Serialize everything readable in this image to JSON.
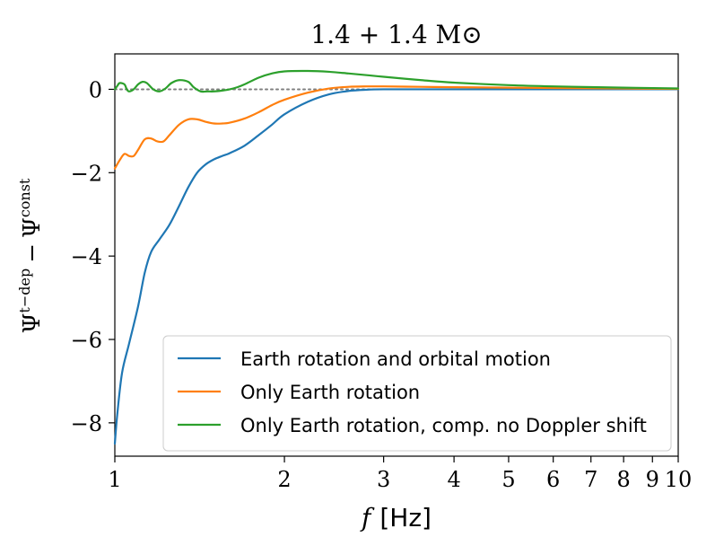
{
  "chart_data": {
    "type": "line",
    "title": "1.4 + 1.4 M⊙",
    "xlabel": {
      "symbol": "f",
      "unit": "[Hz]"
    },
    "ylabel": {
      "main": "Ψ",
      "sup1": "t−dep",
      "minus": "−",
      "main2": "Ψ",
      "sup2": "const"
    },
    "xscale": "log",
    "xlim": [
      1,
      10
    ],
    "ylim": [
      -8.8,
      0.85
    ],
    "xticks": [
      {
        "value": 1,
        "label": "1"
      },
      {
        "value": 2,
        "label": "2"
      },
      {
        "value": 3,
        "label": "3"
      },
      {
        "value": 4,
        "label": "4"
      },
      {
        "value": 5,
        "label": "5"
      },
      {
        "value": 6,
        "label": "6"
      },
      {
        "value": 7,
        "label": "7"
      },
      {
        "value": 8,
        "label": "8"
      },
      {
        "value": 9,
        "label": "9"
      },
      {
        "value": 10,
        "label": "10"
      }
    ],
    "yticks": [
      {
        "value": 0,
        "label": "0"
      },
      {
        "value": -2,
        "label": "−2"
      },
      {
        "value": -4,
        "label": "−4"
      },
      {
        "value": -6,
        "label": "−6"
      },
      {
        "value": -8,
        "label": "−8"
      }
    ],
    "reference_line": {
      "y": 0,
      "style": "dotted",
      "color": "#808080"
    },
    "legend_position": "lower-right",
    "series": [
      {
        "name": "Earth rotation and orbital motion",
        "color": "#1f77b4",
        "x": [
          1.0,
          1.01,
          1.03,
          1.06,
          1.1,
          1.13,
          1.16,
          1.2,
          1.25,
          1.3,
          1.35,
          1.4,
          1.45,
          1.5,
          1.55,
          1.6,
          1.7,
          1.8,
          1.9,
          2.0,
          2.2,
          2.4,
          2.6,
          2.8,
          3.0,
          3.5,
          4.0,
          5.0,
          6.0,
          8.0,
          10.0
        ],
        "y": [
          -8.5,
          -7.8,
          -6.8,
          -6.1,
          -5.2,
          -4.4,
          -3.9,
          -3.6,
          -3.25,
          -2.8,
          -2.35,
          -2.0,
          -1.8,
          -1.68,
          -1.6,
          -1.53,
          -1.35,
          -1.1,
          -0.85,
          -0.6,
          -0.3,
          -0.12,
          -0.04,
          -0.01,
          0.0,
          0.0,
          0.0,
          0.0,
          0.0,
          0.0,
          0.0
        ]
      },
      {
        "name": "Only Earth rotation",
        "color": "#ff7f0e",
        "x": [
          1.0,
          1.02,
          1.04,
          1.06,
          1.08,
          1.1,
          1.13,
          1.16,
          1.19,
          1.22,
          1.25,
          1.3,
          1.35,
          1.4,
          1.45,
          1.5,
          1.55,
          1.6,
          1.7,
          1.8,
          1.9,
          2.0,
          2.2,
          2.4,
          2.6,
          2.8,
          3.0,
          3.5,
          4.0,
          5.0,
          6.0,
          8.0,
          10.0
        ],
        "y": [
          -1.9,
          -1.7,
          -1.55,
          -1.6,
          -1.6,
          -1.45,
          -1.2,
          -1.18,
          -1.25,
          -1.25,
          -1.1,
          -0.85,
          -0.72,
          -0.72,
          -0.78,
          -0.82,
          -0.82,
          -0.8,
          -0.7,
          -0.55,
          -0.38,
          -0.25,
          -0.08,
          0.02,
          0.06,
          0.07,
          0.07,
          0.06,
          0.05,
          0.04,
          0.03,
          0.02,
          0.01
        ]
      },
      {
        "name": "Only Earth rotation, comp. no Doppler shift",
        "color": "#2ca02c",
        "x": [
          1.0,
          1.01,
          1.02,
          1.04,
          1.05,
          1.06,
          1.08,
          1.1,
          1.12,
          1.14,
          1.17,
          1.2,
          1.23,
          1.26,
          1.3,
          1.35,
          1.38,
          1.42,
          1.46,
          1.5,
          1.55,
          1.6,
          1.65,
          1.7,
          1.8,
          1.9,
          2.0,
          2.2,
          2.4,
          2.6,
          2.8,
          3.0,
          3.5,
          4.0,
          5.0,
          6.0,
          8.0,
          10.0
        ],
        "y": [
          0.0,
          0.08,
          0.15,
          0.12,
          0.0,
          -0.05,
          0.0,
          0.12,
          0.18,
          0.15,
          0.0,
          -0.05,
          0.02,
          0.15,
          0.22,
          0.18,
          0.05,
          -0.05,
          -0.05,
          -0.05,
          -0.03,
          0.0,
          0.05,
          0.12,
          0.28,
          0.38,
          0.43,
          0.44,
          0.42,
          0.38,
          0.34,
          0.3,
          0.22,
          0.16,
          0.1,
          0.07,
          0.04,
          0.02
        ]
      }
    ]
  }
}
